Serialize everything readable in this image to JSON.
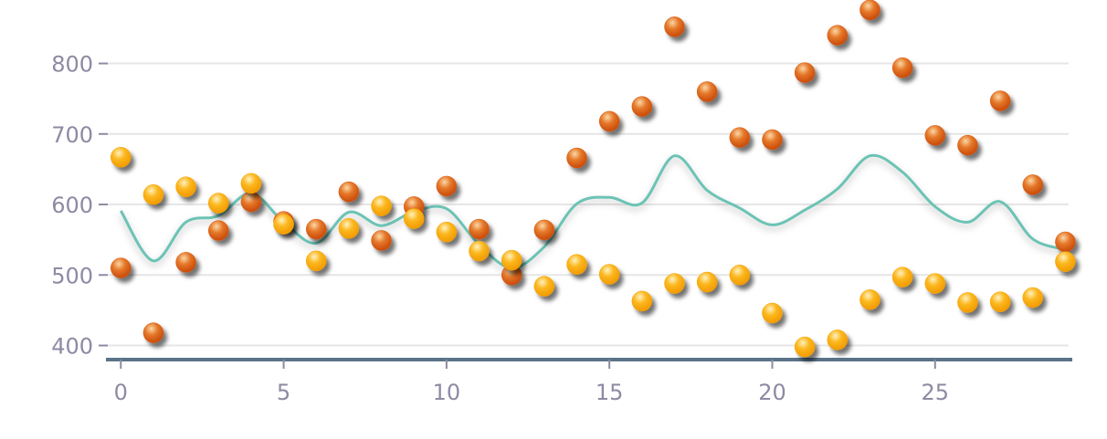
{
  "chart_data": {
    "type": "scatter",
    "x": [
      0,
      1,
      2,
      3,
      4,
      5,
      6,
      7,
      8,
      9,
      10,
      11,
      12,
      13,
      14,
      15,
      16,
      17,
      18,
      19,
      20,
      21,
      22,
      23,
      24,
      25,
      26,
      27,
      28,
      29
    ],
    "xlim": [
      -0.4,
      29.1
    ],
    "ylim": [
      380,
      890
    ],
    "x_ticks": [
      0,
      5,
      10,
      15,
      20,
      25
    ],
    "y_ticks": [
      400,
      500,
      600,
      700,
      800
    ],
    "grid": true,
    "series": [
      {
        "kind": "scatter",
        "color": "#d95a12",
        "values": [
          510,
          418,
          518,
          563,
          604,
          576,
          565,
          618,
          549,
          597,
          626,
          565,
          500,
          564,
          666,
          718,
          739,
          852,
          760,
          695,
          692,
          787,
          840,
          876,
          794,
          698,
          684,
          747,
          628,
          547
        ]
      },
      {
        "kind": "scatter",
        "color": "#f5a000",
        "values": [
          667,
          614,
          625,
          602,
          630,
          572,
          520,
          566,
          598,
          580,
          561,
          534,
          521,
          484,
          515,
          501,
          463,
          488,
          490,
          500,
          446,
          398,
          408,
          465,
          497,
          488,
          461,
          462,
          468,
          519
        ]
      },
      {
        "kind": "line",
        "color": "#6cc3b5",
        "smooth": true,
        "values": [
          591,
          520,
          575,
          584,
          616,
          575,
          545,
          589,
          570,
          590,
          594,
          543,
          510,
          540,
          601,
          610,
          602,
          669,
          620,
          595,
          571,
          592,
          622,
          669,
          646,
          597,
          575,
          604,
          551,
          536
        ]
      }
    ]
  }
}
